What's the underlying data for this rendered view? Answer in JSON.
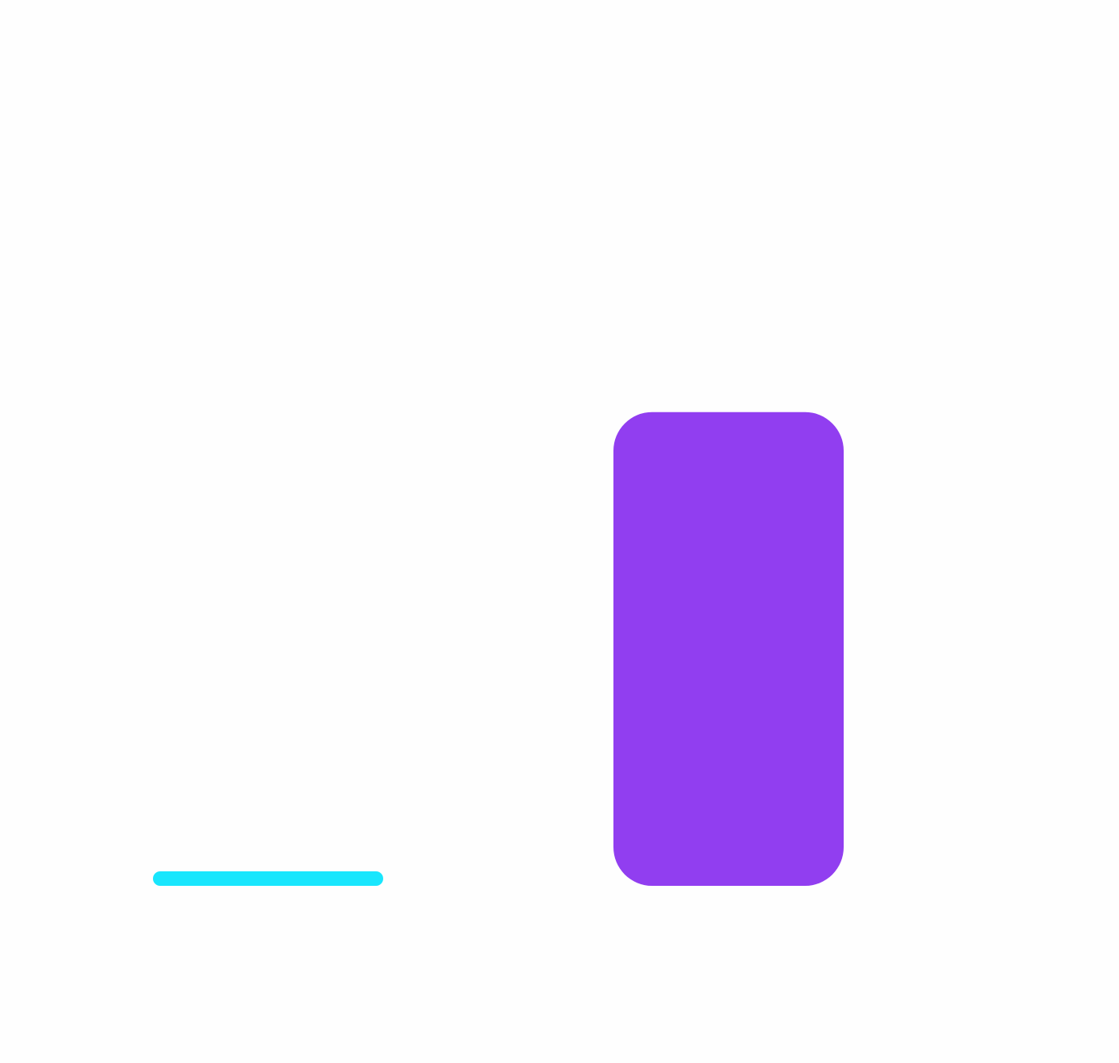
{
  "chart_data": {
    "type": "bar",
    "title": "",
    "xlabel": "",
    "ylabel": "",
    "categories": [
      "",
      ""
    ],
    "series": [
      {
        "name": "",
        "values": [
          0,
          100
        ],
        "colors": [
          "#19e6fd",
          "#913ef0"
        ]
      }
    ],
    "ylim": [
      0,
      170
    ],
    "grid": false,
    "legend": "none"
  }
}
